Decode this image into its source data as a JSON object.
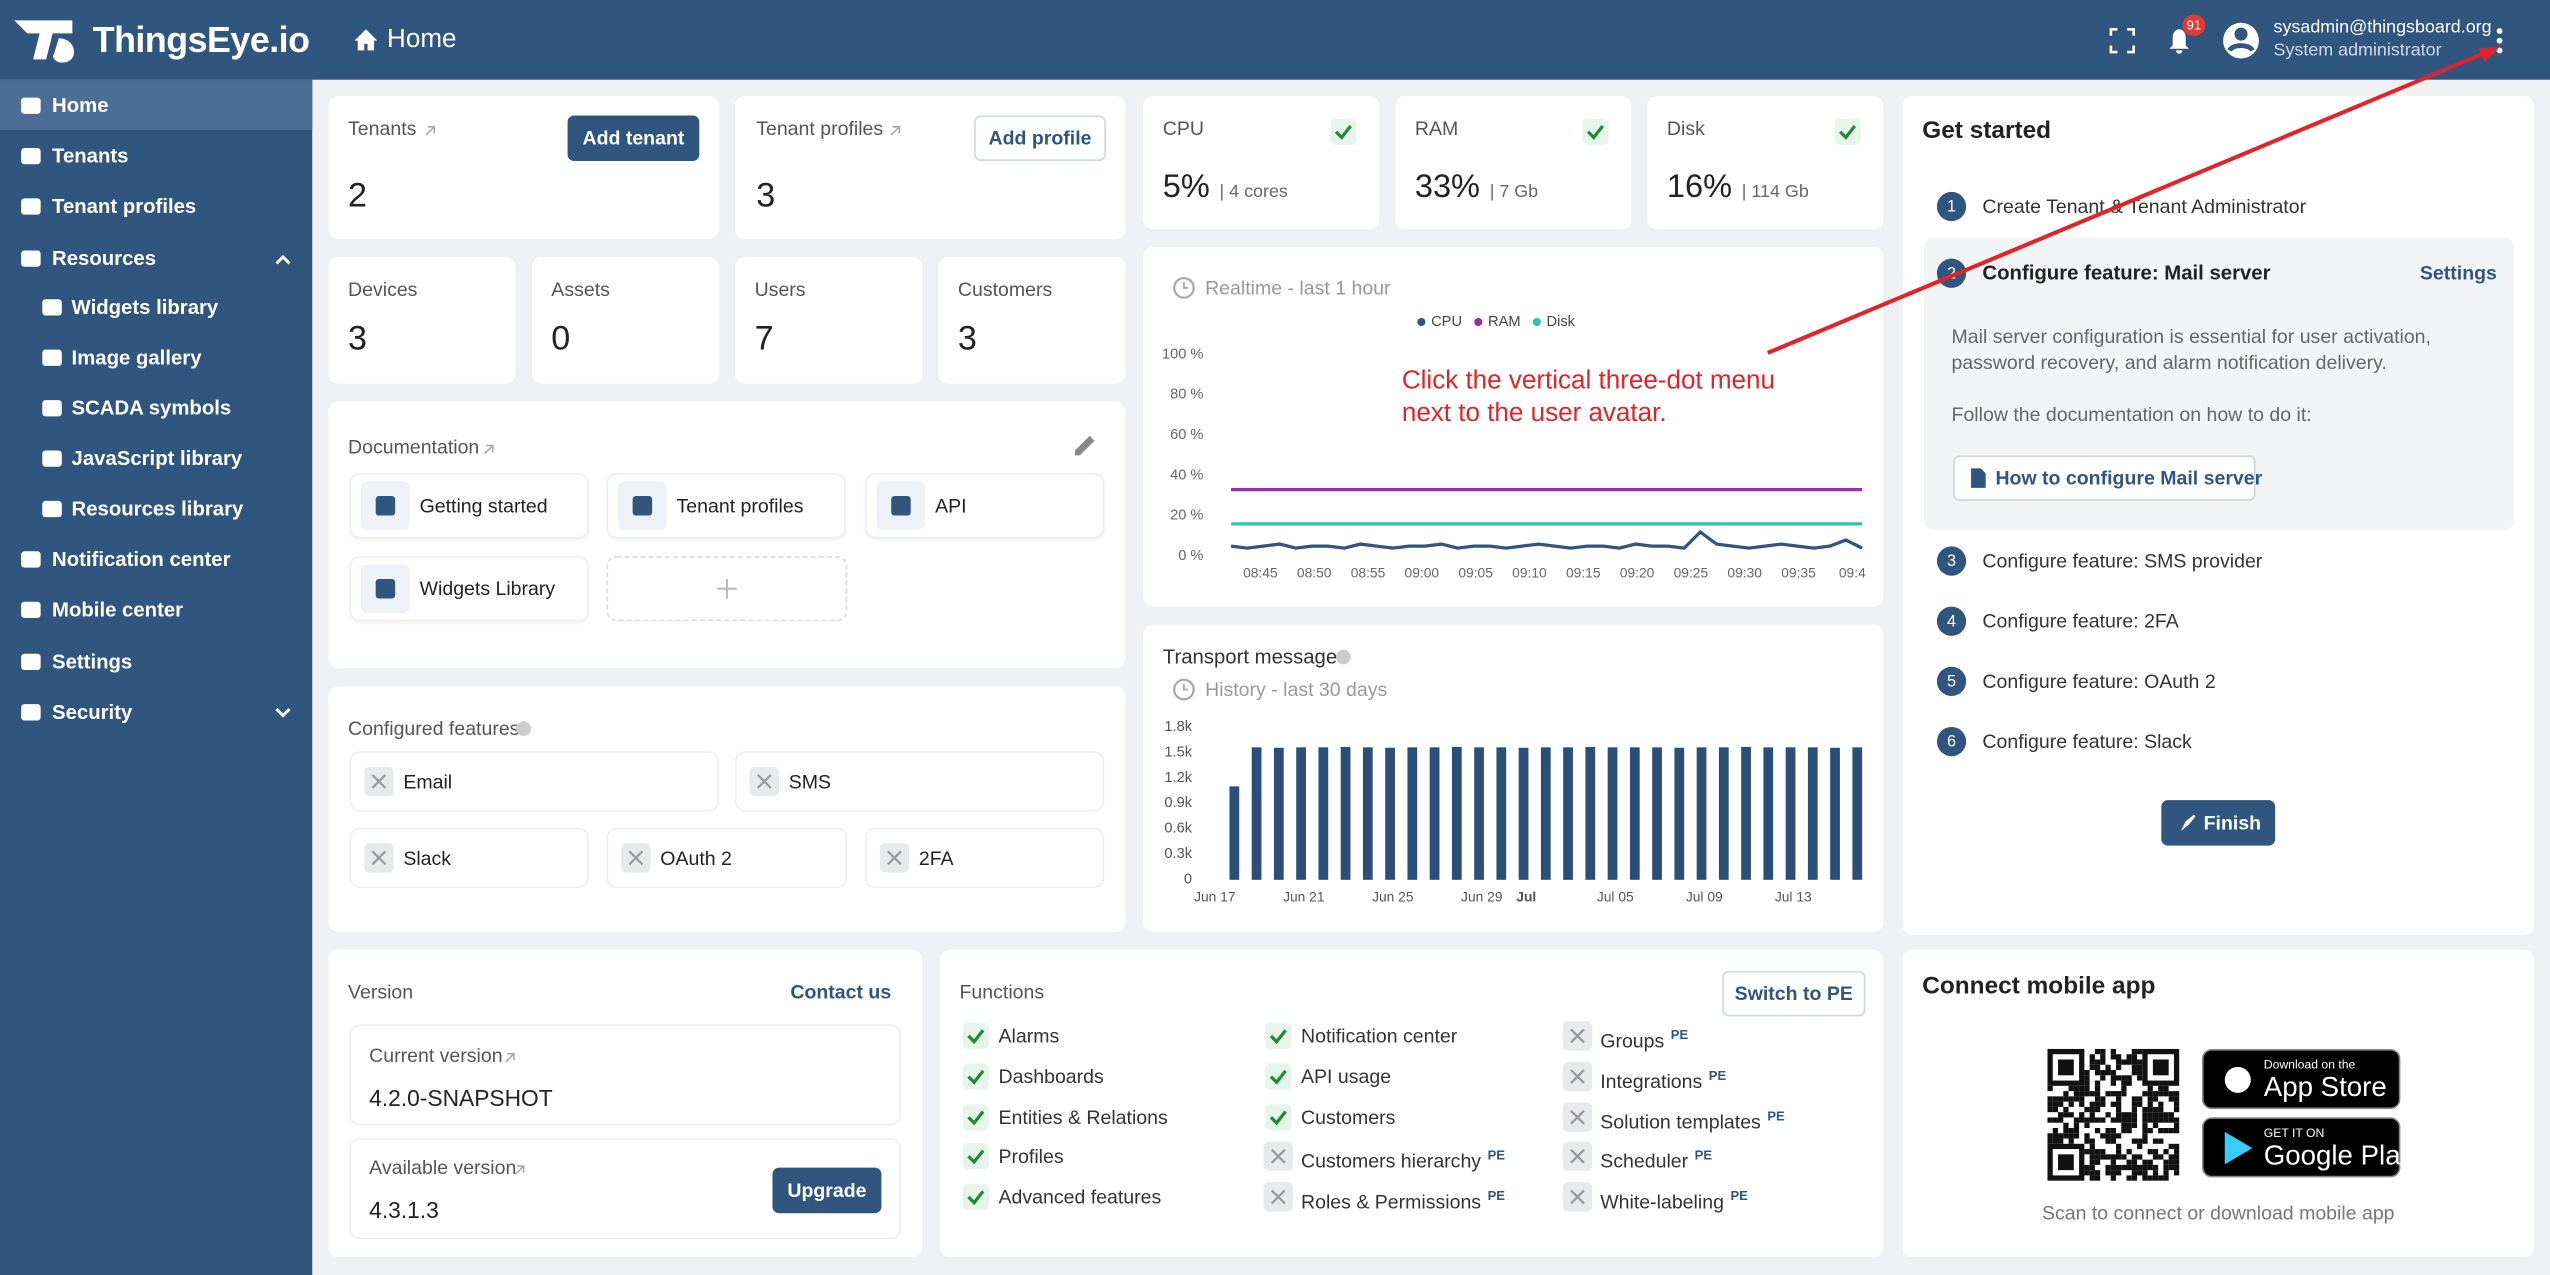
{
  "header": {
    "logo": "ThingsEye.io",
    "breadcrumb": "Home",
    "notification_count": "91",
    "user_email": "sysadmin@thingsboard.org",
    "user_role": "System administrator"
  },
  "sidebar": {
    "items": [
      "Home",
      "Tenants",
      "Tenant profiles",
      "Resources",
      "Widgets library",
      "Image gallery",
      "SCADA symbols",
      "JavaScript library",
      "Resources library",
      "Notification center",
      "Mobile center",
      "Settings",
      "Security"
    ]
  },
  "tenants": {
    "label": "Tenants",
    "value": 2,
    "button": "Add tenant"
  },
  "tenant_profiles": {
    "label": "Tenant profiles",
    "value": 3,
    "button": "Add profile"
  },
  "system": [
    {
      "label": "CPU",
      "value": "5%",
      "detail": "| 4 cores"
    },
    {
      "label": "RAM",
      "value": "33%",
      "detail": "| 7 Gb"
    },
    {
      "label": "Disk",
      "value": "16%",
      "detail": "| 114 Gb"
    }
  ],
  "counts": [
    {
      "label": "Devices",
      "value": 3
    },
    {
      "label": "Assets",
      "value": 0
    },
    {
      "label": "Users",
      "value": 7
    },
    {
      "label": "Customers",
      "value": 3
    }
  ],
  "documentation": {
    "title": "Documentation",
    "links": [
      "Getting started",
      "Tenant profiles",
      "API",
      "Widgets Library"
    ]
  },
  "realtime_chart": {
    "type": "line",
    "title": "Realtime - last 1 hour",
    "series": [
      {
        "name": "CPU",
        "color": "#305680",
        "values": [
          5,
          4,
          5,
          6,
          4,
          5,
          5,
          4,
          6,
          5,
          4,
          5,
          5,
          6,
          4,
          5,
          5,
          4,
          5,
          6,
          5,
          4,
          5,
          5,
          4,
          6,
          5,
          5,
          4,
          12,
          6,
          5,
          4,
          5,
          6,
          5,
          4,
          5,
          8,
          4
        ]
      },
      {
        "name": "RAM",
        "color": "#9c27b0",
        "values": [
          33,
          33,
          33,
          33,
          33,
          33,
          33,
          33,
          33,
          33,
          33,
          33,
          33,
          33,
          33,
          33,
          33,
          33,
          33,
          33,
          33,
          33,
          33,
          33,
          33,
          33,
          33,
          33,
          33,
          33,
          33,
          33,
          33,
          33,
          33,
          33,
          33,
          33,
          33,
          33
        ]
      },
      {
        "name": "Disk",
        "color": "#26c6a6",
        "values": [
          16,
          16,
          16,
          16,
          16,
          16,
          16,
          16,
          16,
          16,
          16,
          16,
          16,
          16,
          16,
          16,
          16,
          16,
          16,
          16,
          16,
          16,
          16,
          16,
          16,
          16,
          16,
          16,
          16,
          16,
          16,
          16,
          16,
          16,
          16,
          16,
          16,
          16,
          16,
          16
        ]
      }
    ],
    "ylim": [
      0,
      100
    ],
    "yticks": [
      {
        "value": 0,
        "label": "0 %"
      },
      {
        "value": 20,
        "label": "20 %"
      },
      {
        "value": 40,
        "label": "40 %"
      },
      {
        "value": 60,
        "label": "60 %"
      },
      {
        "value": 80,
        "label": "80 %"
      },
      {
        "value": 100,
        "label": "100 %"
      }
    ],
    "xticks": [
      "08:45",
      "08:50",
      "08:55",
      "09:00",
      "09:05",
      "09:10",
      "09:15",
      "09:20",
      "09:25",
      "09:30",
      "09:35",
      "09:4"
    ]
  },
  "transport_chart": {
    "type": "bar",
    "title": "Transport messages",
    "subtitle": "History - last 30 days",
    "color": "#2c4f78",
    "categories": [
      "Jun 17",
      null,
      null,
      null,
      "Jun 21",
      null,
      null,
      null,
      "Jun 25",
      null,
      null,
      null,
      "Jun 29",
      null,
      "Jul",
      null,
      null,
      null,
      "Jul 05",
      null,
      null,
      null,
      "Jul 09",
      null,
      null,
      null,
      "Jul 13",
      null,
      null
    ],
    "values": [
      1100,
      1560,
      1555,
      1560,
      1560,
      1565,
      1560,
      1555,
      1560,
      1560,
      1565,
      1560,
      1560,
      1555,
      1560,
      1560,
      1565,
      1560,
      1560,
      1560,
      1555,
      1560,
      1560,
      1565,
      1560,
      1560,
      1560,
      1555,
      1560
    ],
    "ylim": [
      0,
      1800
    ],
    "yticks": [
      0,
      {
        "value": 300,
        "label": "0.3k"
      },
      {
        "value": 600,
        "label": "0.6k"
      },
      {
        "value": 900,
        "label": "0.9k"
      },
      {
        "value": 1200,
        "label": "1.2k"
      },
      {
        "value": 1500,
        "label": "1.5k"
      },
      {
        "value": 1800,
        "label": "1.8k"
      }
    ]
  },
  "features": {
    "title": "Configured features",
    "items": [
      "Email",
      "SMS",
      "Slack",
      "OAuth 2",
      "2FA"
    ]
  },
  "get_started": {
    "title": "Get started",
    "steps": [
      {
        "number": 1,
        "label": "Create Tenant & Tenant Administrator"
      },
      {
        "number": 2,
        "label": "Configure feature: Mail server"
      },
      {
        "number": 3,
        "label": "Configure feature: SMS provider"
      },
      {
        "number": 4,
        "label": "Configure feature: 2FA"
      },
      {
        "number": 5,
        "label": "Configure feature: OAuth 2"
      },
      {
        "number": 6,
        "label": "Configure feature: Slack"
      }
    ],
    "settings": "Settings",
    "description": "Mail server configuration is essential for user activation, password recovery, and alarm notification delivery.",
    "follow": "Follow the documentation on how to do it:",
    "doc_button": "How to configure Mail server",
    "finish": "Finish"
  },
  "version": {
    "title": "Version",
    "contact": "Contact us",
    "current_label": "Current version",
    "current": "4.2.0-SNAPSHOT",
    "available_label": "Available version",
    "available": "4.3.1.3",
    "upgrade": "Upgrade"
  },
  "functions": {
    "title": "Functions",
    "button": "Switch to PE",
    "badge": "PE",
    "columns": [
      [
        {
          "name": "Alarms",
          "enabled": true,
          "pe": false
        },
        {
          "name": "Dashboards",
          "enabled": true,
          "pe": false
        },
        {
          "name": "Entities & Relations",
          "enabled": true,
          "pe": false
        },
        {
          "name": "Profiles",
          "enabled": true,
          "pe": false
        },
        {
          "name": "Advanced features",
          "enabled": true,
          "pe": false
        }
      ],
      [
        {
          "name": "Notification center",
          "enabled": true,
          "pe": false
        },
        {
          "name": "API usage",
          "enabled": true,
          "pe": false
        },
        {
          "name": "Customers",
          "enabled": true,
          "pe": false
        },
        {
          "name": "Customers hierarchy",
          "enabled": false,
          "pe": true
        },
        {
          "name": "Roles & Permissions",
          "enabled": false,
          "pe": true
        }
      ],
      [
        {
          "name": "Groups",
          "enabled": false,
          "pe": true
        },
        {
          "name": "Integrations",
          "enabled": false,
          "pe": true
        },
        {
          "name": "Solution templates",
          "enabled": false,
          "pe": true
        },
        {
          "name": "Scheduler",
          "enabled": false,
          "pe": true
        },
        {
          "name": "White-labeling",
          "enabled": false,
          "pe": true
        }
      ]
    ]
  },
  "mobile": {
    "title": "Connect mobile app",
    "caption": "Scan to connect or download mobile app",
    "app_store": [
      "Download on the",
      "App Store"
    ],
    "google_play": [
      "GET IT ON",
      "Google Play"
    ]
  },
  "annotation": "Click the vertical three-dot menu next to the user avatar."
}
